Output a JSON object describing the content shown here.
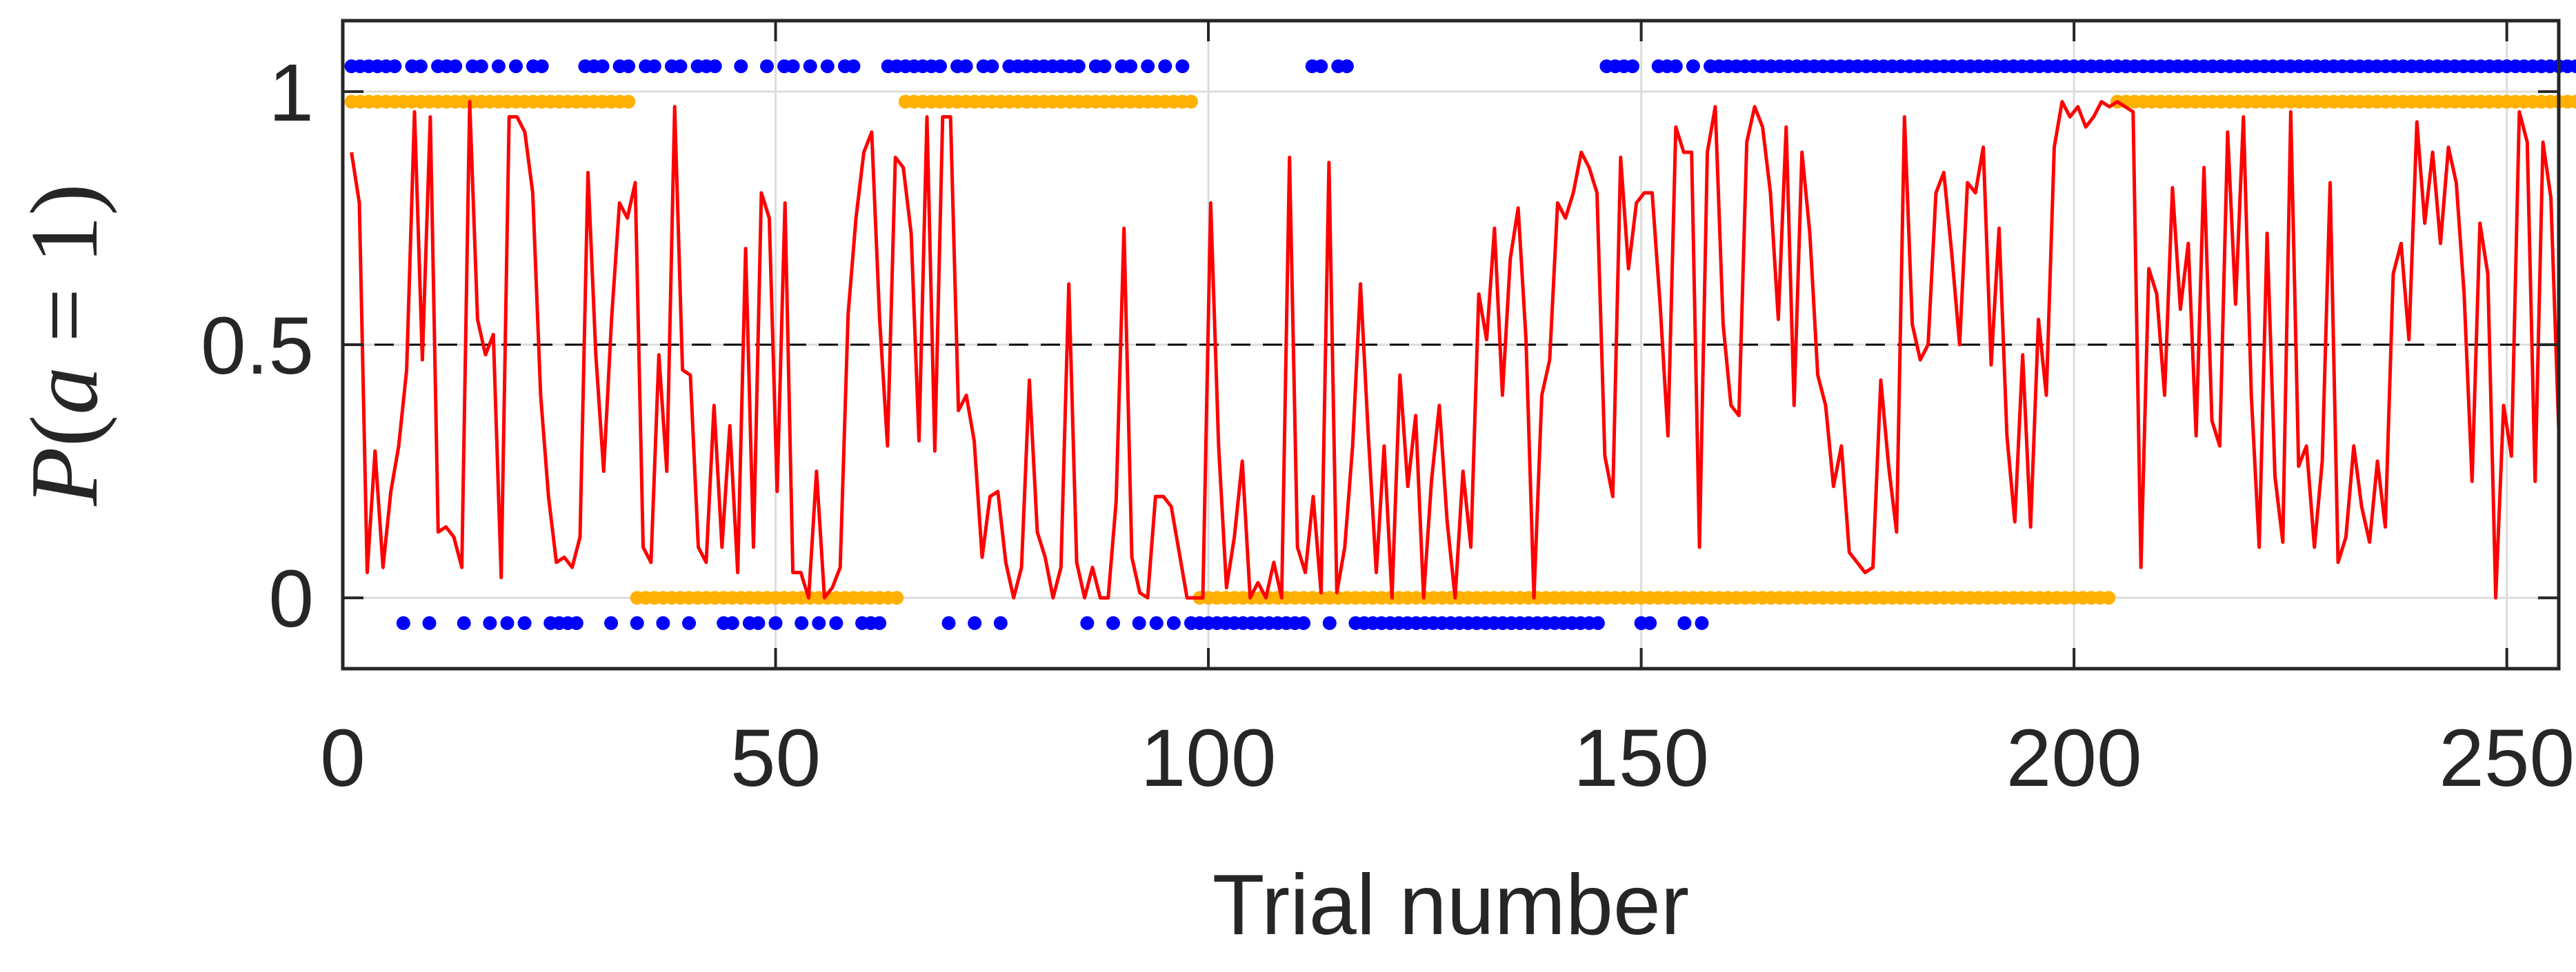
{
  "chart_data": {
    "type": "line",
    "xlabel": "Trial number",
    "ylabel": {
      "prefix": "P",
      "open": "(",
      "var": "a",
      "rest": " = 1)"
    },
    "xlim": [
      0,
      256
    ],
    "ylim": [
      -0.14,
      1.14
    ],
    "xticks": [
      0,
      50,
      100,
      150,
      200,
      250
    ],
    "xtick_labels": [
      "0",
      "50",
      "100",
      "150",
      "200",
      "250"
    ],
    "yticks": [
      0,
      0.5,
      1
    ],
    "ytick_labels": [
      "0",
      "0.5",
      "1"
    ],
    "grid": true,
    "reference_line": {
      "y": 0.5,
      "style": "dashed",
      "color": "#000000"
    },
    "colors": {
      "probability_line": "#ff0000",
      "action_markers": "#ffb000",
      "outcome_markers": "#0000ff",
      "grid": "#dcdcdc",
      "axes": "#262626"
    },
    "series": [
      {
        "role": "probability",
        "type": "line",
        "y": [
          0.88,
          0.78,
          0.05,
          0.29,
          0.06,
          0.21,
          0.3,
          0.45,
          0.96,
          0.47,
          0.95,
          0.13,
          0.14,
          0.12,
          0.06,
          0.98,
          0.55,
          0.48,
          0.52,
          0.04,
          0.95,
          0.95,
          0.92,
          0.8,
          0.4,
          0.2,
          0.07,
          0.08,
          0.06,
          0.12,
          0.84,
          0.48,
          0.25,
          0.55,
          0.78,
          0.75,
          0.82,
          0.1,
          0.07,
          0.48,
          0.25,
          0.97,
          0.45,
          0.44,
          0.1,
          0.07,
          0.38,
          0.1,
          0.34,
          0.05,
          0.69,
          0.1,
          0.8,
          0.75,
          0.21,
          0.78,
          0.05,
          0.05,
          0.0,
          0.25,
          0.0,
          0.02,
          0.06,
          0.56,
          0.75,
          0.88,
          0.92,
          0.55,
          0.3,
          0.87,
          0.85,
          0.72,
          0.31,
          0.95,
          0.29,
          0.95,
          0.95,
          0.37,
          0.4,
          0.31,
          0.08,
          0.2,
          0.21,
          0.07,
          0.0,
          0.06,
          0.43,
          0.13,
          0.08,
          0.0,
          0.06,
          0.62,
          0.07,
          0.0,
          0.06,
          0.0,
          0.0,
          0.19,
          0.73,
          0.08,
          0.01,
          0.0,
          0.2,
          0.2,
          0.18,
          0.09,
          0.0,
          0.0,
          0.0,
          0.78,
          0.3,
          0.02,
          0.12,
          0.27,
          0.0,
          0.03,
          0.0,
          0.07,
          0.0,
          0.87,
          0.1,
          0.05,
          0.2,
          0.01,
          0.86,
          0.01,
          0.1,
          0.3,
          0.62,
          0.32,
          0.05,
          0.3,
          0.0,
          0.44,
          0.22,
          0.36,
          0.0,
          0.23,
          0.38,
          0.15,
          0.0,
          0.25,
          0.1,
          0.6,
          0.51,
          0.73,
          0.4,
          0.67,
          0.77,
          0.51,
          0.0,
          0.4,
          0.47,
          0.78,
          0.75,
          0.8,
          0.88,
          0.85,
          0.8,
          0.28,
          0.2,
          0.87,
          0.65,
          0.78,
          0.8,
          0.8,
          0.58,
          0.32,
          0.93,
          0.88,
          0.88,
          0.1,
          0.88,
          0.97,
          0.54,
          0.38,
          0.36,
          0.9,
          0.97,
          0.93,
          0.8,
          0.55,
          0.93,
          0.38,
          0.88,
          0.72,
          0.44,
          0.38,
          0.22,
          0.3,
          0.09,
          0.07,
          0.05,
          0.06,
          0.43,
          0.26,
          0.13,
          0.95,
          0.54,
          0.47,
          0.5,
          0.8,
          0.84,
          0.68,
          0.5,
          0.82,
          0.8,
          0.89,
          0.46,
          0.73,
          0.32,
          0.15,
          0.48,
          0.14,
          0.55,
          0.4,
          0.89,
          0.98,
          0.95,
          0.97,
          0.93,
          0.95,
          0.98,
          0.97,
          0.98,
          0.97,
          0.96,
          0.06,
          0.65,
          0.6,
          0.4,
          0.81,
          0.57,
          0.7,
          0.32,
          0.85,
          0.35,
          0.3,
          0.92,
          0.58,
          0.95,
          0.4,
          0.1,
          0.72,
          0.24,
          0.11,
          0.96,
          0.26,
          0.3,
          0.1,
          0.27,
          0.82,
          0.07,
          0.12,
          0.3,
          0.18,
          0.11,
          0.27,
          0.14,
          0.64,
          0.7,
          0.51,
          0.94,
          0.74,
          0.88,
          0.7,
          0.89,
          0.82,
          0.6,
          0.23,
          0.74,
          0.64,
          0.0,
          0.38,
          0.28,
          0.96,
          0.9,
          0.23,
          0.9,
          0.79,
          0.33
        ]
      },
      {
        "role": "action",
        "type": "scatter",
        "y_high": 0.98,
        "y_low": 0.0,
        "values": "1111111111111111111111111111111110000000000000000000000000000000111111111111111111111111111111111100000000000000000000000000000000000000000000000000000000000000000000000000000000000000000000000000000000001111111111111111111111111111111111111111111111111111111111111111111111111111111111111111111111111111111111111111111111111111111111100000000000000000000000000000000000000000000000000000000000000000"
      },
      {
        "role": "outcome",
        "type": "scatter",
        "y_high": 1.05,
        "y_low": -0.05,
        "values": "1111110110111011010101100001110110110110111001001011010101100011111110110110111111111011011010101000000000000001101100000000000000000000000000000111100111010111111111111111111111111111111111111111111111111111111111111111111111111111111111111111111111111111111111101100000101011000000011111111111111111111111111111111111111111111111111111111111111111111111111111111111111111111111111111111"
      }
    ]
  }
}
